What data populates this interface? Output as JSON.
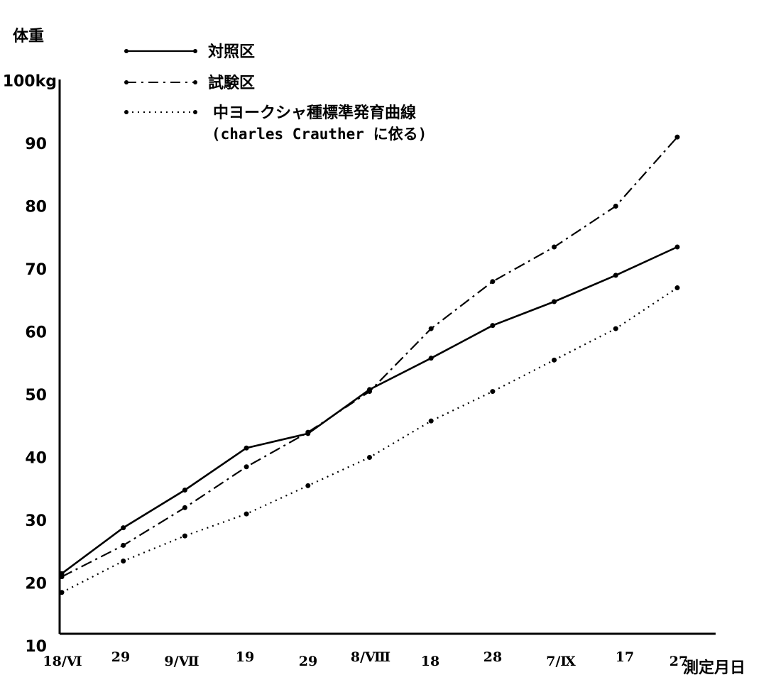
{
  "chart_data": {
    "type": "line",
    "ylabel": "体重",
    "xlabel": "測定月日",
    "categories": [
      "18/Ⅵ",
      "29",
      "9/Ⅶ",
      "19",
      "29",
      "8/Ⅷ",
      "18",
      "28",
      "7/Ⅸ",
      "17",
      "27"
    ],
    "yticks": [
      "100kg",
      "90",
      "80",
      "70",
      "60",
      "50",
      "40",
      "30",
      "20",
      "10"
    ],
    "ylim": [
      8,
      100
    ],
    "grid": false,
    "legend_position": "top-left",
    "series": [
      {
        "name": "対照区",
        "style": "solid",
        "values": [
          21.5,
          28.8,
          34.8,
          41.5,
          43.8,
          50.8,
          55.8,
          61.0,
          64.8,
          69.0,
          73.5
        ]
      },
      {
        "name": "試験区",
        "style": "dashed",
        "values": [
          21.0,
          26.0,
          32.0,
          38.5,
          44.0,
          50.5,
          60.5,
          68.0,
          73.5,
          80.0,
          91.0
        ]
      },
      {
        "name": "中ヨークシャ種標準発育曲線",
        "note": "(charles Crauther に依る)",
        "style": "dotted",
        "values": [
          18.5,
          23.5,
          27.5,
          31.0,
          35.5,
          40.0,
          45.8,
          50.5,
          55.5,
          60.5,
          67.0
        ]
      }
    ]
  }
}
